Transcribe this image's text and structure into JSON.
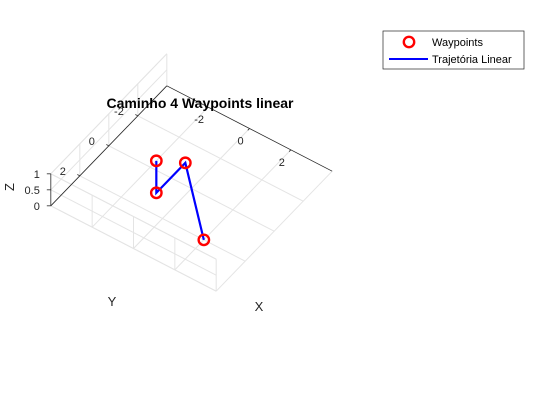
{
  "chart_data": {
    "type": "line3d",
    "title": "Caminho 4 Waypoints linear",
    "xlabel": "X",
    "ylabel": "Y",
    "zlabel": "Z",
    "xlim": [
      -4,
      4
    ],
    "ylim": [
      -4,
      4
    ],
    "zlim": [
      0,
      1
    ],
    "xticks": [
      -2,
      0,
      2
    ],
    "yticks": [
      -2,
      0,
      2
    ],
    "zticks": [
      0,
      0.5,
      1
    ],
    "xtick_labels": [
      "-2",
      "0",
      "2"
    ],
    "ytick_labels": [
      "-2",
      "0",
      "2"
    ],
    "ztick_labels": [
      "0",
      "0.5",
      "1"
    ],
    "grid": true,
    "legend_position": "top-right",
    "series": [
      {
        "name": "Waypoints",
        "kind": "markers",
        "color": "#ff0000",
        "marker": "circle",
        "points": [
          {
            "x": -1,
            "y": 1,
            "z": 1
          },
          {
            "x": -1,
            "y": 1,
            "z": 0
          },
          {
            "x": -1,
            "y": -1,
            "z": 0
          },
          {
            "x": 2,
            "y": 2,
            "z": 0
          }
        ]
      },
      {
        "name": "Trajetória Linear",
        "kind": "line",
        "color": "#0000ff",
        "points": [
          {
            "x": -1,
            "y": 1,
            "z": 1
          },
          {
            "x": -1,
            "y": 1,
            "z": 0
          },
          {
            "x": -1,
            "y": -1,
            "z": 0
          },
          {
            "x": 2,
            "y": 2,
            "z": 0
          }
        ]
      }
    ]
  }
}
